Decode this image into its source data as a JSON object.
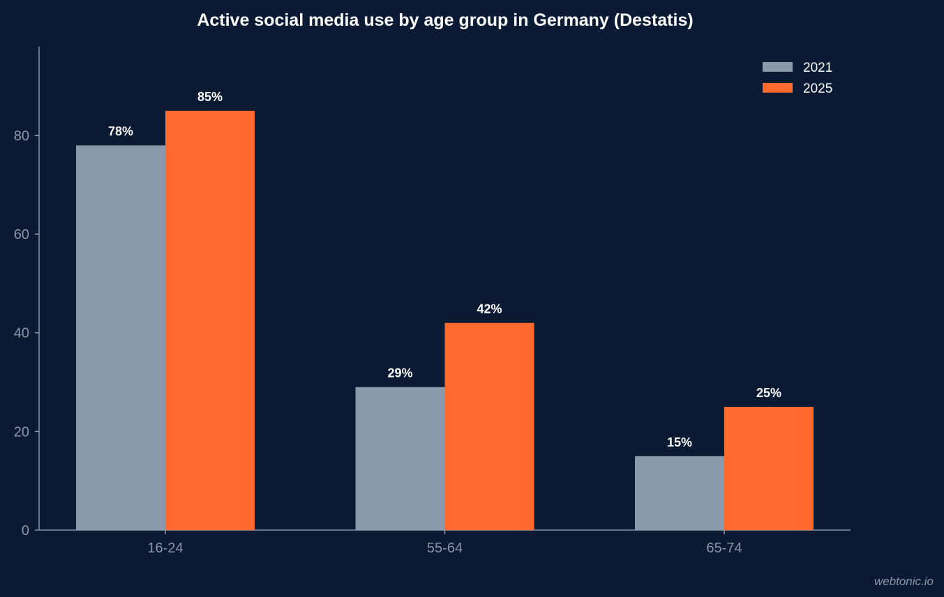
{
  "chart_data": {
    "type": "bar",
    "title": "Active social media use by age group in Germany (Destatis)",
    "xlabel": "",
    "ylabel": "",
    "categories": [
      "16-24",
      "55-64",
      "65-74"
    ],
    "series": [
      {
        "name": "2021",
        "values": [
          78,
          29,
          15
        ],
        "labels": [
          "78%",
          "29%",
          "15%"
        ],
        "color": "#8a9aaa"
      },
      {
        "name": "2025",
        "values": [
          85,
          42,
          25
        ],
        "labels": [
          "85%",
          "42%",
          "25%"
        ],
        "color": "#ff6b2e"
      }
    ],
    "ylim": [
      0,
      98
    ],
    "yticks": [
      0,
      20,
      40,
      60,
      80
    ],
    "grid": false,
    "legend_position": "top-right"
  },
  "watermark": "webtonic.io",
  "colors": {
    "background": "#0b1a33",
    "axis": "#8797a8",
    "text": "#ffffff"
  }
}
